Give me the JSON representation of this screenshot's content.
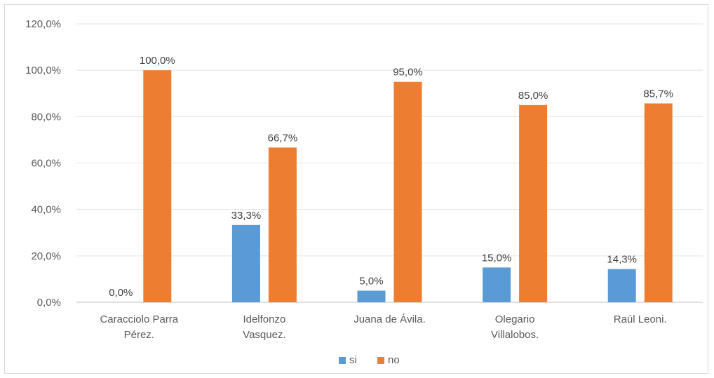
{
  "chart_data": {
    "type": "bar",
    "categories": [
      [
        "Caracciolo Parra",
        "Pérez."
      ],
      [
        "Idelfonzo",
        "Vasquez."
      ],
      [
        "Juana de Ávila."
      ],
      [
        "Olegario",
        "Villalobos."
      ],
      [
        "Raúl Leoni."
      ]
    ],
    "series": [
      {
        "name": "si",
        "color": "#5b9bd5",
        "values": [
          0.0,
          33.3,
          5.0,
          15.0,
          14.3
        ],
        "labels": [
          "0,0%",
          "33,3%",
          "5,0%",
          "15,0%",
          "14,3%"
        ]
      },
      {
        "name": "no",
        "color": "#ed7d31",
        "values": [
          100.0,
          66.7,
          95.0,
          85.0,
          85.7
        ],
        "labels": [
          "100,0%",
          "66,7%",
          "95,0%",
          "85,0%",
          "85,7%"
        ]
      }
    ],
    "ylim": [
      0,
      120
    ],
    "yticks": [
      "0,0%",
      "20,0%",
      "40,0%",
      "60,0%",
      "80,0%",
      "100,0%",
      "120,0%"
    ],
    "grid": true,
    "legend": "bottom"
  }
}
